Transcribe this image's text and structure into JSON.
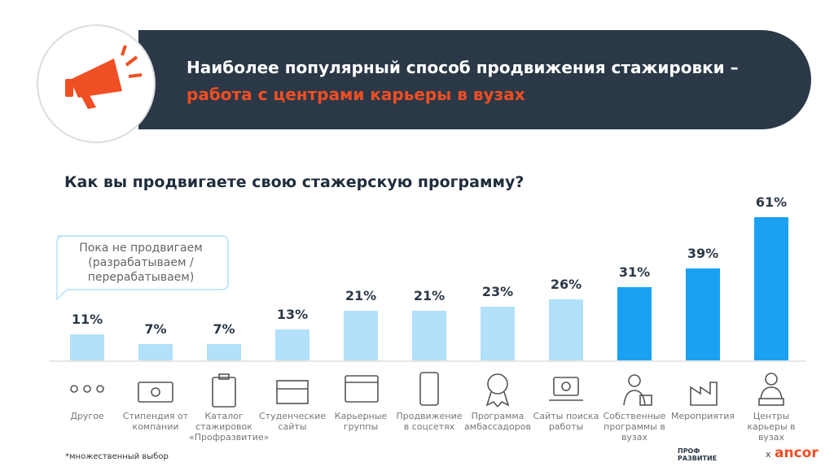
{
  "header": {
    "title_line1": "Наиболее популярный способ продвижения стажировки –",
    "title_line2": "работа с центрами карьеры в вузах"
  },
  "chart_data": {
    "type": "bar",
    "title": "Как вы продвигаете свою стажерскую программу?",
    "categories": [
      "Другое",
      "Стипендия от компании",
      "Каталог стажировок «Профразвитие»",
      "Студенческие сайты",
      "Карьерные группы",
      "Продвижение в соцсетях",
      "Программа амбассадоров",
      "Сайты поиска работы",
      "Собственные программы в вузах",
      "Мероприятия",
      "Центры карьеры в вузах"
    ],
    "values": [
      11,
      7,
      7,
      13,
      21,
      21,
      23,
      26,
      31,
      39,
      61
    ],
    "value_labels": [
      "11%",
      "7%",
      "7%",
      "13%",
      "21%",
      "21%",
      "23%",
      "26%",
      "31%",
      "39%",
      "61%"
    ],
    "colors": [
      "#b3e0fb",
      "#b3e0fb",
      "#b3e0fb",
      "#b3e0fb",
      "#b3e0fb",
      "#b3e0fb",
      "#b3e0fb",
      "#b3e0fb",
      "#1aa1f2",
      "#1aa1f2",
      "#1aa1f2"
    ],
    "annotation": "Пока не продвигаем (разрабатываем / перерабатываем)",
    "footnote": "*множественный выбор"
  },
  "footer": {
    "logo1_top": "ПРОФ",
    "logo1_bottom": "РАЗВИТИЕ",
    "separator": "x",
    "logo2": "ancor"
  }
}
